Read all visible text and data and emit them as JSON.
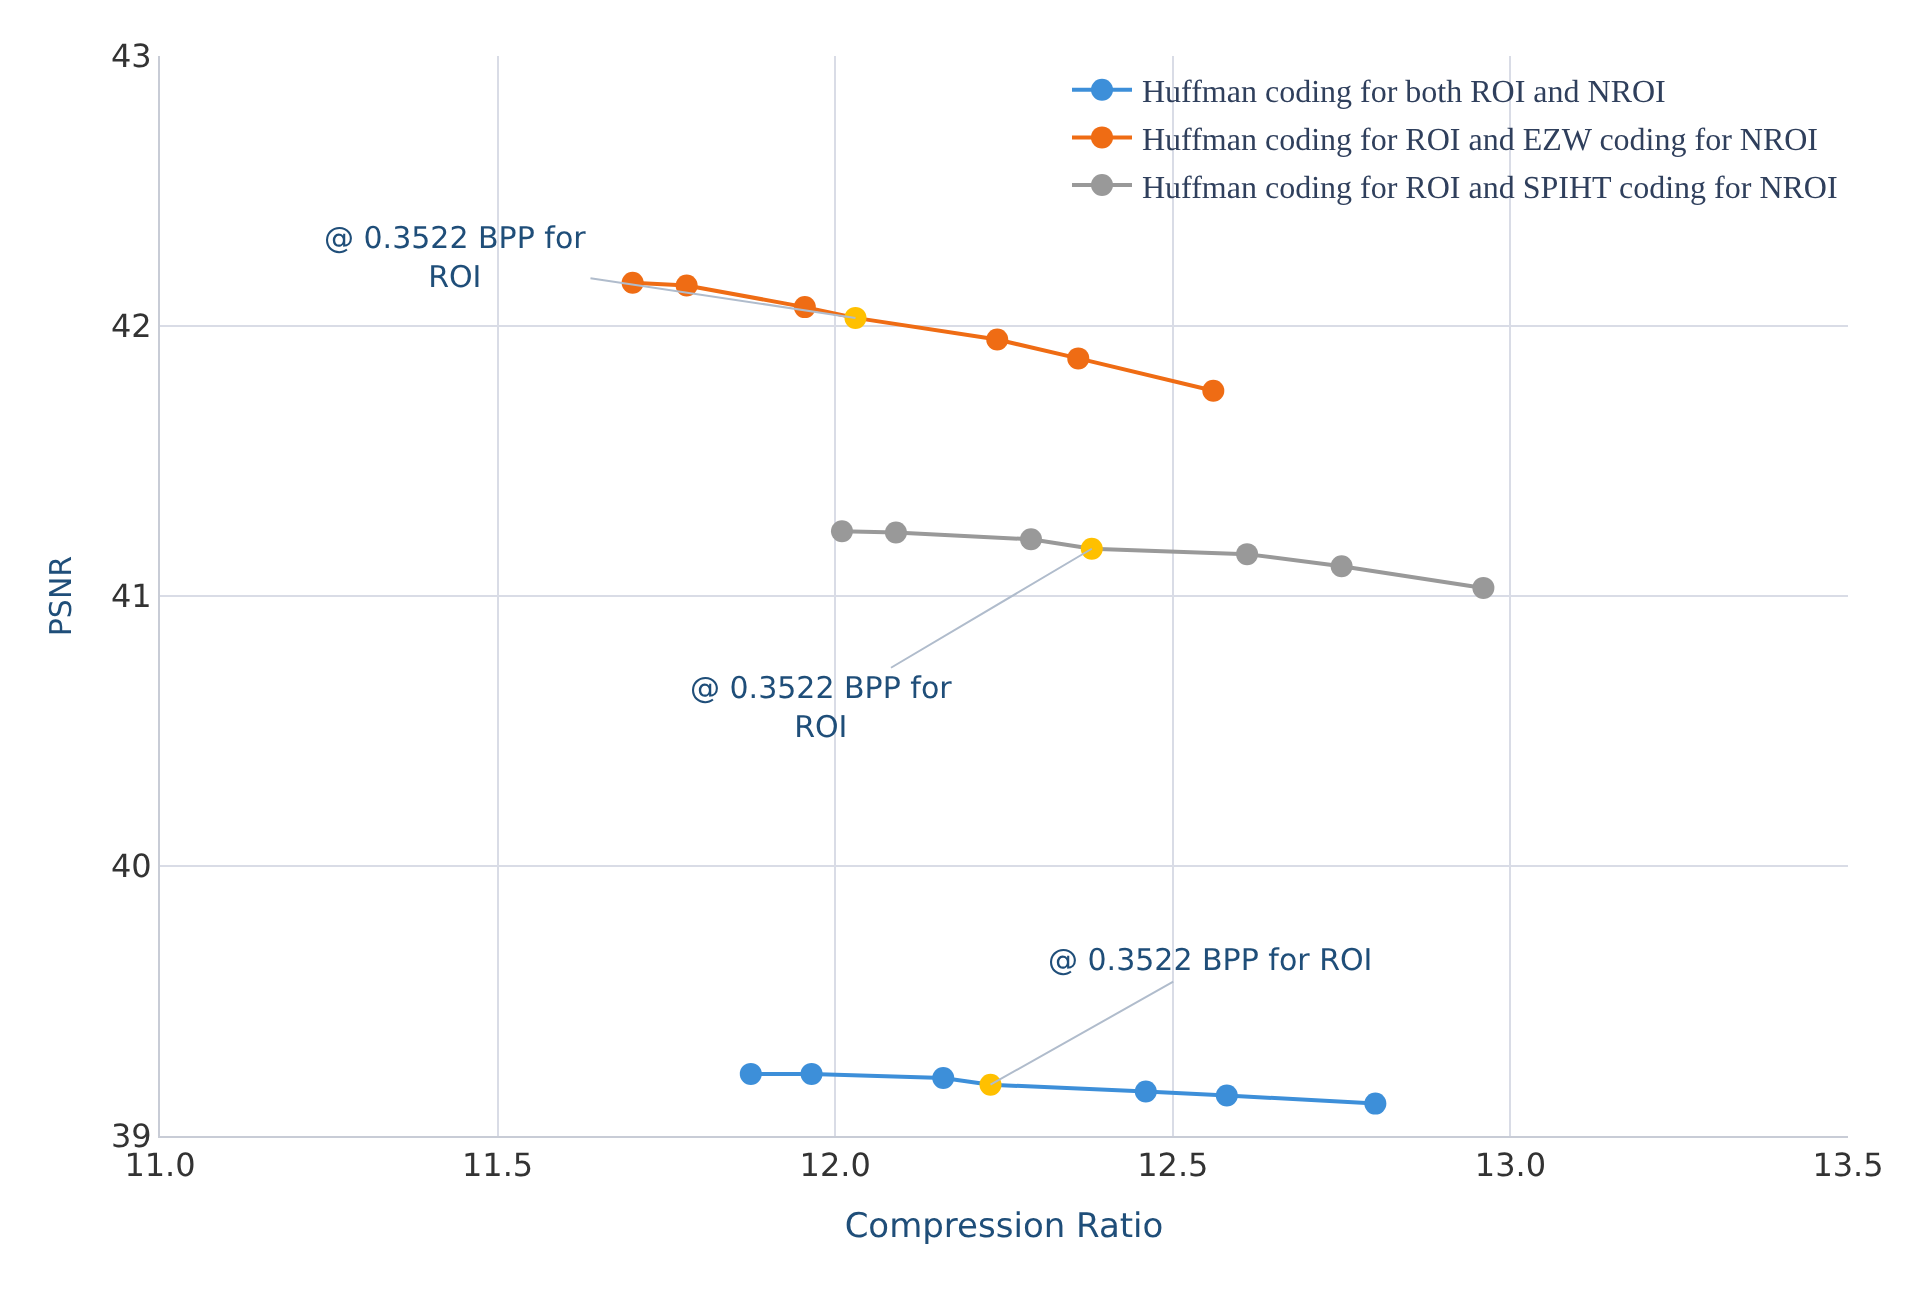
{
  "chart_data": {
    "type": "line",
    "xlabel": "Compression Ratio",
    "ylabel": "PSNR",
    "xlim": [
      11,
      13.5
    ],
    "xticks": [
      {
        "value": 11,
        "label": "11.0"
      },
      {
        "value": 11.5,
        "label": "11.5"
      },
      {
        "value": 12,
        "label": "12.0"
      },
      {
        "value": 12.5,
        "label": "12.5"
      },
      {
        "value": 13,
        "label": "13.0"
      },
      {
        "value": 13.5,
        "label": "13.5"
      }
    ],
    "ylim": [
      39,
      43
    ],
    "yticks": [
      39,
      40,
      41,
      42,
      43
    ],
    "grid": true,
    "legend": "top right",
    "marker": "circle",
    "line_style": "solid",
    "series": [
      {
        "name": "Huffman coding for both ROI and NROI",
        "color": "#3d8fd9",
        "colors": [
          "#3d8fd9",
          "#3d8fd9",
          "#3d8fd9",
          "#ffc000",
          "#3d8fd9",
          "#3d8fd9",
          "#3d8fd9"
        ],
        "x": [
          11.875,
          11.965,
          12.16,
          12.23,
          12.46,
          12.58,
          12.8
        ],
        "values": [
          39.23,
          39.23,
          39.215,
          39.19,
          39.165,
          39.15,
          39.12
        ]
      },
      {
        "name": "Huffman coding for ROI and EZW coding for NROI",
        "color": "#ef6c14",
        "colors": [
          "#ef6c14",
          "#ef6c14",
          "#ef6c14",
          "#ffc000",
          "#ef6c14",
          "#ef6c14",
          "#ef6c14"
        ],
        "x": [
          11.7,
          11.78,
          11.955,
          12.03,
          12.24,
          12.36,
          12.56
        ],
        "values": [
          42.16,
          42.15,
          42.07,
          42.03,
          41.95,
          41.88,
          41.76
        ]
      },
      {
        "name": "Huffman coding for ROI and SPIHT coding for NROI",
        "color": "#999999",
        "colors": [
          "#999999",
          "#999999",
          "#999999",
          "#ffc000",
          "#999999",
          "#999999",
          "#999999"
        ],
        "x": [
          12.01,
          12.09,
          12.29,
          12.38,
          12.61,
          12.75,
          12.96
        ],
        "values": [
          41.24,
          41.235,
          41.21,
          41.175,
          41.155,
          41.11,
          41.03
        ]
      }
    ],
    "annotations": [
      {
        "text": "@ 0.3522 BPP for\nROI",
        "x": 12.03,
        "y": 42.03
      },
      {
        "text": "@ 0.3522 BPP for\nROI",
        "x": 12.38,
        "y": 41.175
      },
      {
        "text": "@ 0.3522 BPP for ROI",
        "x": 12.23,
        "y": 39.19
      }
    ]
  }
}
